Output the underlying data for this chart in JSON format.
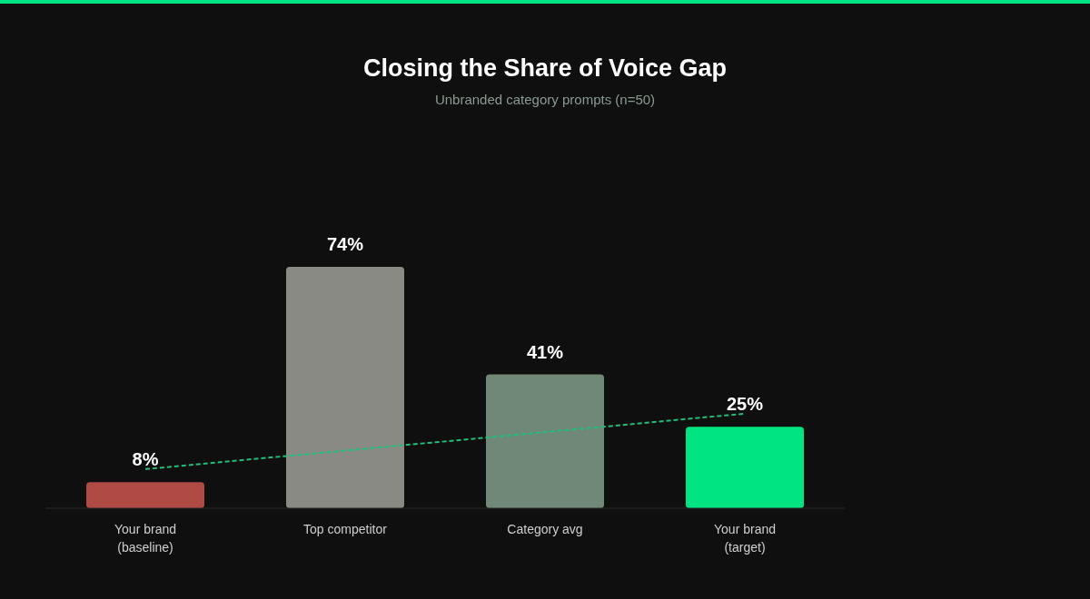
{
  "chart_data": {
    "type": "bar",
    "title": "Closing the Share of Voice Gap",
    "subtitle": "Unbranded category prompts (n=50)",
    "categories": [
      "Your brand (baseline)",
      "Top competitor",
      "Category avg",
      "Your brand (target)"
    ],
    "series": [
      {
        "values": [
          8,
          74,
          41,
          25
        ],
        "colors": [
          "#b04a45",
          "#8a8a84",
          "#6f8878",
          "#00e482"
        ],
        "value_labels": [
          "8%",
          "74%",
          "41%",
          "25%"
        ]
      },
      {
        "type": "line",
        "color": "#1fbf7a",
        "line_style": "dashed",
        "marker": "none",
        "values": [
          12,
          null,
          null,
          29
        ]
      }
    ]
  }
}
